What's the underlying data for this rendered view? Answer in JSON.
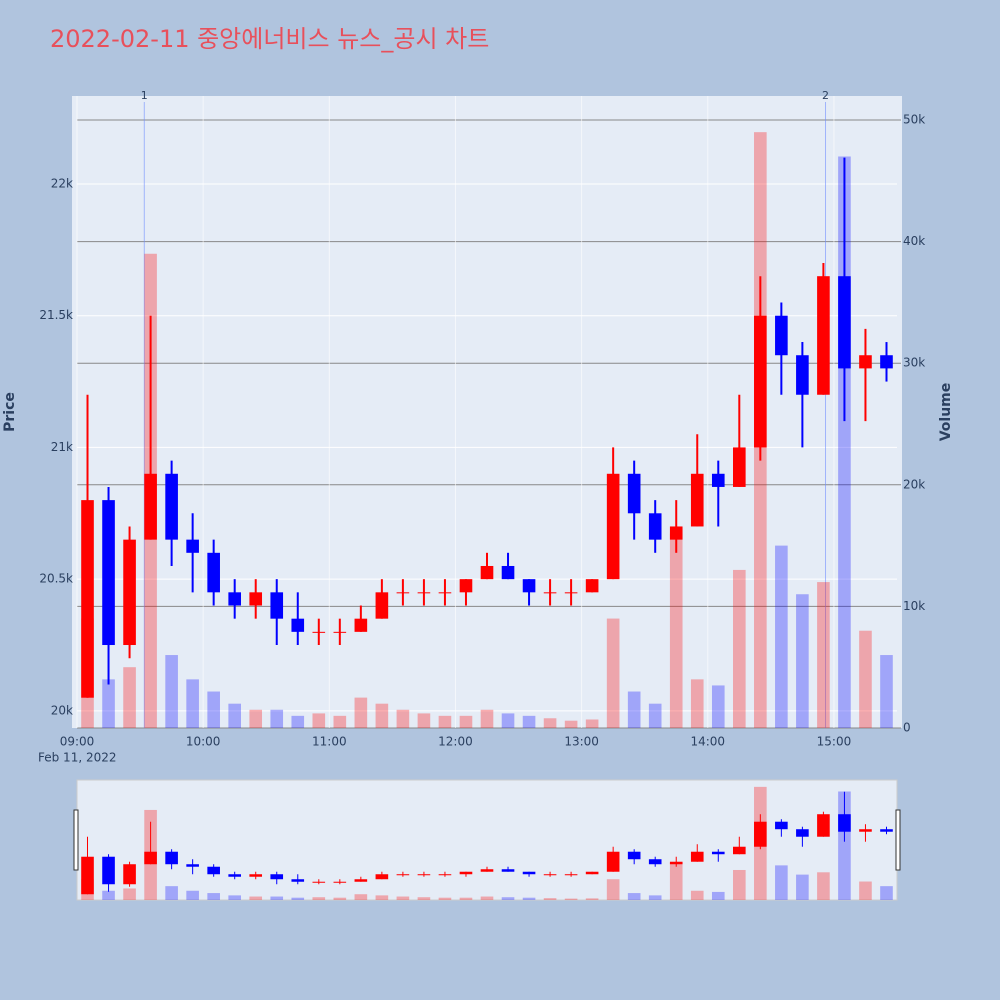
{
  "chart_data": {
    "type": "candlestick",
    "title": "2022-02-11 중앙에너비스 뉴스_공시 차트",
    "y_title": "Price",
    "y2_title": "Volume",
    "x_date_label": "Feb 11, 2022",
    "increasing_color": "#ff0000",
    "decreasing_color": "#0000ff",
    "x": [
      "09:00",
      "09:10",
      "09:20",
      "09:30",
      "09:40",
      "09:50",
      "10:00",
      "10:10",
      "10:20",
      "10:30",
      "10:40",
      "10:50",
      "11:00",
      "11:10",
      "11:20",
      "11:30",
      "11:40",
      "11:50",
      "12:00",
      "12:10",
      "12:20",
      "12:30",
      "12:40",
      "12:50",
      "13:00",
      "13:10",
      "13:20",
      "13:30",
      "13:40",
      "13:50",
      "14:00",
      "14:10",
      "14:20",
      "14:30",
      "14:40",
      "14:50",
      "15:00",
      "15:10",
      "15:20"
    ],
    "open": [
      20050,
      20800,
      20250,
      20650,
      20900,
      20650,
      20600,
      20450,
      20400,
      20450,
      20350,
      20300,
      20300,
      20300,
      20350,
      20450,
      20450,
      20450,
      20450,
      20500,
      20550,
      20500,
      20450,
      20450,
      20450,
      20500,
      20900,
      20750,
      20650,
      20700,
      20900,
      20850,
      21000,
      21500,
      21350,
      21200,
      21650,
      21300,
      21350
    ],
    "high": [
      21200,
      20850,
      20700,
      21500,
      20950,
      20750,
      20650,
      20500,
      20500,
      20500,
      20450,
      20350,
      20350,
      20400,
      20500,
      20500,
      20500,
      20500,
      20500,
      20600,
      20600,
      20500,
      20500,
      20500,
      20500,
      21000,
      20950,
      20800,
      20800,
      21050,
      20950,
      21200,
      21650,
      21550,
      21400,
      21700,
      22100,
      21450,
      21400
    ],
    "low": [
      20050,
      20100,
      20200,
      20650,
      20550,
      20450,
      20400,
      20350,
      20350,
      20250,
      20250,
      20250,
      20250,
      20300,
      20350,
      20400,
      20400,
      20400,
      20400,
      20500,
      20500,
      20400,
      20400,
      20400,
      20450,
      20500,
      20650,
      20600,
      20600,
      20700,
      20700,
      20850,
      20950,
      21200,
      21000,
      21200,
      21100,
      21100,
      21250
    ],
    "close": [
      20800,
      20250,
      20650,
      20900,
      20650,
      20600,
      20450,
      20400,
      20450,
      20350,
      20300,
      20300,
      20300,
      20350,
      20450,
      20450,
      20450,
      20450,
      20500,
      20550,
      20500,
      20450,
      20450,
      20450,
      20500,
      20900,
      20750,
      20650,
      20700,
      20900,
      20850,
      21000,
      21500,
      21350,
      21200,
      21650,
      21300,
      21350,
      21300
    ],
    "volume": [
      9000,
      4000,
      5000,
      39000,
      6000,
      4000,
      3000,
      2000,
      1500,
      1500,
      1000,
      1200,
      1000,
      2500,
      2000,
      1500,
      1200,
      1000,
      1000,
      1500,
      1200,
      1000,
      800,
      600,
      700,
      9000,
      3000,
      2000,
      16000,
      4000,
      3500,
      13000,
      49000,
      15000,
      11000,
      12000,
      47000,
      8000,
      6000
    ],
    "ylim": [
      19935,
      22334
    ],
    "yticks": [
      {
        "value": 20000,
        "label": "20k"
      },
      {
        "value": 20500,
        "label": "20.5k"
      },
      {
        "value": 21000,
        "label": "21k"
      },
      {
        "value": 21500,
        "label": "21.5k"
      },
      {
        "value": 22000,
        "label": "22k"
      }
    ],
    "y2lim": [
      0,
      51974
    ],
    "y2ticks": [
      0,
      {
        "value": 10000,
        "label": "10k"
      },
      {
        "value": 20000,
        "label": "20k"
      },
      {
        "value": 30000,
        "label": "30k"
      },
      {
        "value": 40000,
        "label": "40k"
      },
      {
        "value": 50000,
        "label": "50k"
      }
    ],
    "xlim": [
      "09:00",
      "15:30"
    ],
    "xticks": [
      "09:00",
      "10:00",
      "11:00",
      "12:00",
      "13:00",
      "14:00",
      "15:00"
    ],
    "annotations": [
      {
        "x": "09:32",
        "text": "1"
      },
      {
        "x": "14:56",
        "text": "2"
      }
    ],
    "grid": true
  }
}
